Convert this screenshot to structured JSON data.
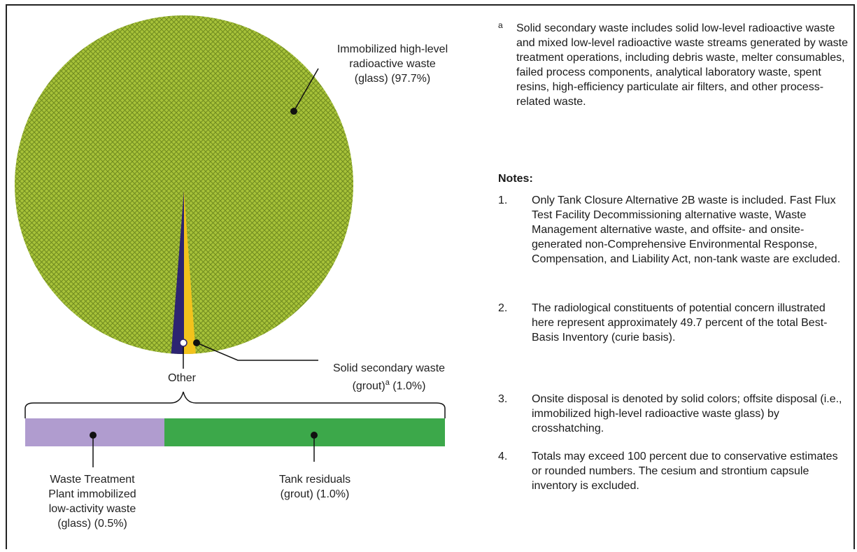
{
  "chart_data": {
    "type": "pie",
    "slices": [
      {
        "label": "Immobilized high-level radioactive waste (glass) (97.7%)",
        "value": 97.7,
        "pattern": "crosshatch",
        "color": "#a7c239"
      },
      {
        "label": "Waste Treatment Plant immobilized low-activity waste (glass) (0.5%)",
        "value": 0.5,
        "color": "#2d2472"
      },
      {
        "label": "Solid secondary waste (grout)a (1.0%)",
        "value": 1.0,
        "color": "#f2c21c"
      }
    ],
    "other_label": "Other",
    "other_bar": [
      {
        "label": "Waste Treatment Plant immobilized low-activity waste (glass) (0.5%)",
        "value": 0.5,
        "color": "#b09ccf"
      },
      {
        "label": "Tank residuals (grout) (1.0%)",
        "value": 1.0,
        "color": "#3ca84a"
      }
    ]
  },
  "labels": {
    "hlw": [
      "Immobilized high-level",
      "radioactive waste",
      "(glass) (97.7%)"
    ],
    "ssw": [
      "Solid secondary waste",
      "(grout)",
      "a",
      " (1.0%)"
    ],
    "other": "Other",
    "wtp": [
      "Waste Treatment",
      "Plant immobilized",
      "low-activity waste",
      "(glass) (0.5%)"
    ],
    "tank": [
      "Tank residuals",
      "(grout) (1.0%)"
    ]
  },
  "footnote": {
    "marker": "a",
    "text": "Solid secondary waste includes solid low-level radioactive waste and mixed low-level radioactive waste streams generated by waste treatment operations, including debris waste, melter consumables, failed process components, analytical laboratory waste, spent resins, high-efficiency particulate air filters, and other process-related waste."
  },
  "notes": {
    "heading": "Notes:",
    "items": [
      {
        "num": "1.",
        "text": "Only Tank Closure Alternative 2B waste is included.  Fast Flux Test Facility Decommissioning alternative waste, Waste Management alternative waste, and offsite- and onsite-generated non-Comprehensive Environmental Response, Compensation, and Liability Act, non-tank waste are excluded."
      },
      {
        "num": "2.",
        "text": "The radiological constituents of potential concern illustrated here represent approximately 49.7 percent of the total Best-Basis Inventory (curie basis)."
      },
      {
        "num": "3.",
        "text": "Onsite disposal is denoted by solid colors; offsite disposal (i.e., immobilized high-level radioactive waste glass) by crosshatching."
      },
      {
        "num": "4.",
        "text": "Totals may exceed 100 percent due to conservative estimates or rounded numbers.  The cesium and strontium capsule inventory is excluded."
      }
    ]
  }
}
